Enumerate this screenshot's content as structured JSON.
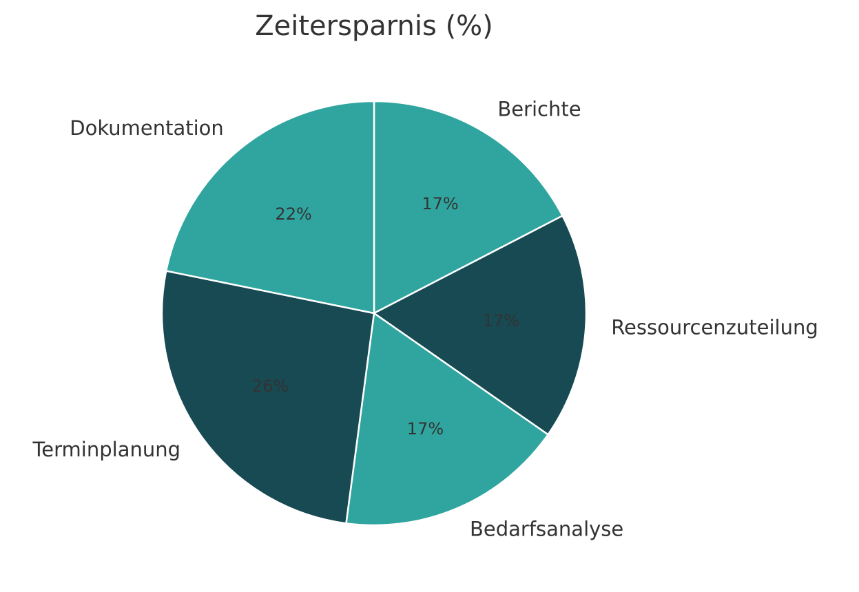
{
  "chart_data": {
    "type": "pie",
    "title": "Zeitersparnis (%)",
    "categories": [
      "Berichte",
      "Ressourcenzuteilung",
      "Bedarfsanalyse",
      "Terminplanung",
      "Dokumentation"
    ],
    "values": [
      17.4,
      17.3,
      17.4,
      26.1,
      21.8
    ],
    "value_labels": [
      "17%",
      "17%",
      "17%",
      "26%",
      "22%"
    ],
    "colors": [
      "#30a59f",
      "#174a53",
      "#30a59f",
      "#174a53",
      "#30a59f"
    ]
  }
}
